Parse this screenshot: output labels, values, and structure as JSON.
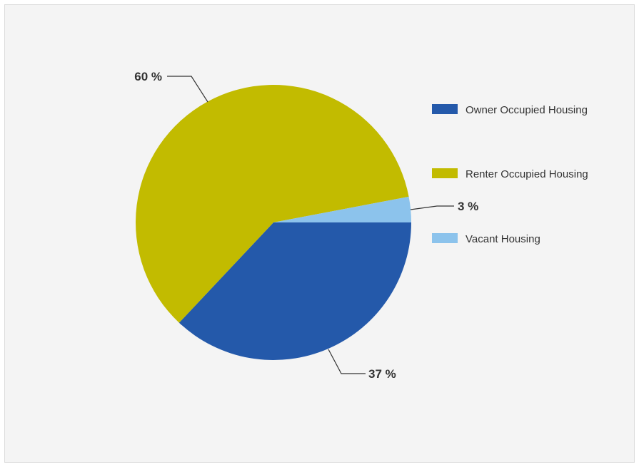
{
  "chart_data": {
    "type": "pie",
    "title": "",
    "series": [
      {
        "name": "Owner Occupied Housing",
        "value": 37,
        "label": "37 %",
        "color": "#2459aa"
      },
      {
        "name": "Renter Occupied Housing",
        "value": 60,
        "label": "60 %",
        "color": "#c2bb00"
      },
      {
        "name": "Vacant Housing",
        "value": 3,
        "label": "3 %",
        "color": "#8cc3ec"
      }
    ],
    "legend_position": "right",
    "start_angle": "3 o'clock, clockwise"
  }
}
